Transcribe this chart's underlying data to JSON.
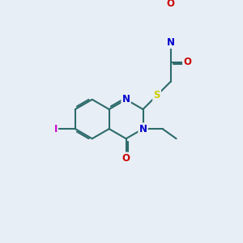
{
  "background_color": "#e8eef5",
  "bond_color": "#2d6b6b",
  "double_bond_color": "#2d6b6b",
  "atom_colors": {
    "N": "#0000cc",
    "O": "#cc0000",
    "S": "#cccc00",
    "I": "#cc00cc",
    "C": "#000000"
  },
  "lw": 1.5,
  "font_size": 9
}
